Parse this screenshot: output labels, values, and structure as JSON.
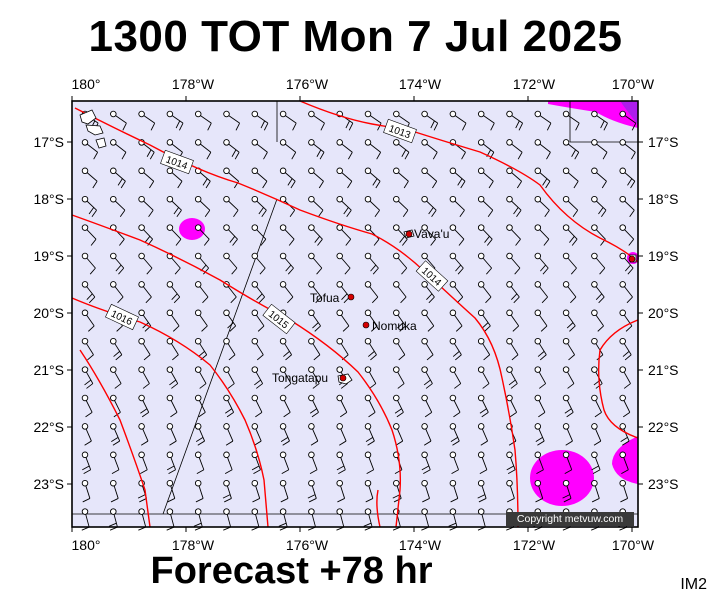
{
  "title": "1300 TOT Mon 7 Jul 2025",
  "footer": "Forecast +78 hr",
  "tag": "IM2",
  "copyright": "Copyright metvuw.com",
  "colors": {
    "ocean": "#e6e6fa",
    "isobar": "#ff0000",
    "highwind": "#ff00ff",
    "land": "#ffffff",
    "dot": "#d40000"
  },
  "axes": {
    "lon_labels": [
      "180°",
      "178°W",
      "176°W",
      "174°W",
      "172°W",
      "170°W"
    ],
    "lat_labels": [
      "17°S",
      "18°S",
      "19°S",
      "20°S",
      "21°S",
      "22°S",
      "23°S"
    ]
  },
  "isobars": [
    "1013",
    "1014",
    "1014",
    "1015",
    "1016"
  ],
  "places": [
    {
      "name": "Vava'u",
      "lon": -174.0,
      "lat": -18.6
    },
    {
      "name": "Tofua",
      "lon": -175.05,
      "lat": -19.75
    },
    {
      "name": "Nomuka",
      "lon": -174.8,
      "lat": -20.25
    },
    {
      "name": "Tongatapu",
      "lon": -175.2,
      "lat": -21.15
    }
  ]
}
